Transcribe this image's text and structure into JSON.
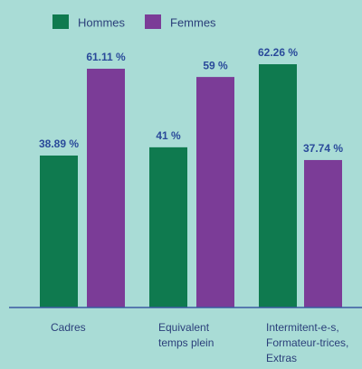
{
  "chart_data": {
    "type": "bar",
    "categories": [
      "Cadres",
      "Equivalent\ntemps plein",
      "Intermitent-e-s,\nFormateur-trices,\nExtras"
    ],
    "series": [
      {
        "name": "Hommes",
        "color": "#0f7a4f",
        "values": [
          38.89,
          41,
          62.26
        ],
        "value_labels": [
          "38.89 %",
          "41 %",
          "62.26 %"
        ]
      },
      {
        "name": "Femmes",
        "color": "#7b3c97",
        "values": [
          61.11,
          59,
          37.74
        ],
        "value_labels": [
          "61.11 %",
          "59 %",
          "37.74 %"
        ]
      }
    ],
    "ylim": [
      0,
      78.7
    ]
  }
}
